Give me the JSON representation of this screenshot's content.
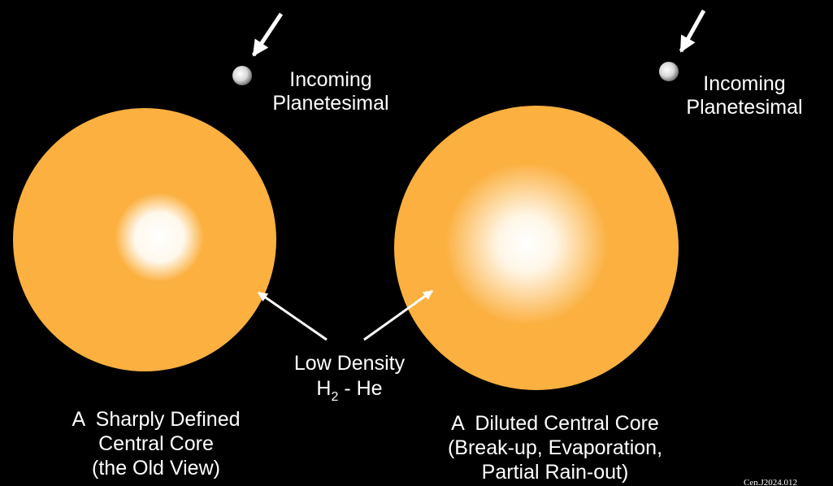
{
  "left": {
    "planetesimal_label": [
      "Incoming",
      "Planetesimal"
    ],
    "caption": [
      "A  Sharply Defined",
      "Central Core",
      "(the Old View)"
    ]
  },
  "right": {
    "planetesimal_label": [
      "Incoming",
      "Planetesimal"
    ],
    "caption": [
      "A  Diluted Central Core",
      "(Break-up, Evaporation,",
      "Partial Rain-out)"
    ]
  },
  "center_label": {
    "line1": "Low Density",
    "line2_main": "H",
    "line2_sub": "2",
    "line2_rest": " - He"
  },
  "credit": "Cen.J2024.012"
}
